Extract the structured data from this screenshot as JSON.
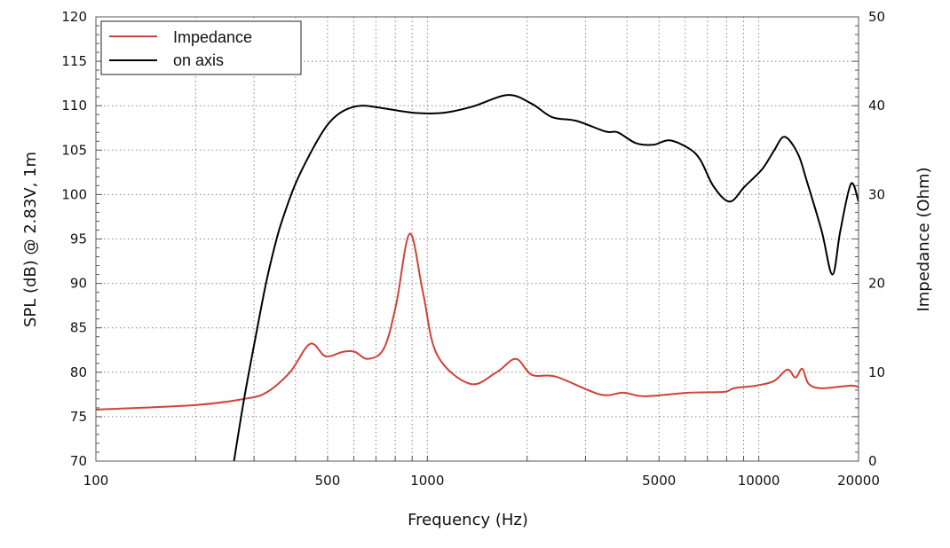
{
  "chart_data": {
    "type": "line",
    "xlabel": "Frequency (Hz)",
    "ylabel": "SPL (dB) @ 2.83V, 1m",
    "y2label": "Impedance (Ohm)",
    "xscale": "log",
    "xlim": [
      100,
      20000
    ],
    "ylim": [
      70,
      120
    ],
    "y2lim": [
      0,
      50
    ],
    "grid": true,
    "legend": "top-left",
    "x_ticks": [
      "100",
      "500",
      "1000",
      "5000",
      "10000",
      "20000"
    ],
    "y_ticks": [
      "70",
      "75",
      "80",
      "85",
      "90",
      "95",
      "100",
      "105",
      "110",
      "115",
      "120"
    ],
    "y2_ticks": [
      "0",
      "10",
      "20",
      "30",
      "40",
      "50"
    ],
    "series": [
      {
        "name": "Impedance",
        "axis": "right",
        "color": "#cf4238",
        "x": [
          100,
          199,
          280,
          326,
          385,
          443,
          493,
          557,
          604,
          662,
          740,
          806,
          885,
          970,
          1069,
          1343,
          1618,
          1849,
          2069,
          2445,
          3320,
          3900,
          4520,
          6150,
          7870,
          8400,
          9820,
          11100,
          12200,
          12900,
          13530,
          14140,
          15480,
          18970,
          20000
        ],
        "y": [
          5.8,
          6.3,
          7.0,
          7.7,
          10.0,
          13.2,
          11.8,
          12.3,
          12.3,
          11.5,
          12.7,
          17.7,
          25.6,
          19.0,
          12.0,
          8.7,
          10.0,
          11.5,
          9.7,
          9.5,
          7.5,
          7.7,
          7.3,
          7.7,
          7.8,
          8.2,
          8.5,
          9.0,
          10.3,
          9.4,
          10.4,
          8.7,
          8.2,
          8.5,
          8.3
        ]
      },
      {
        "name": "on axis",
        "axis": "left",
        "color": "#000000",
        "x": [
          259,
          280,
          307,
          326,
          347,
          364,
          400,
          452,
          501,
          557,
          630,
          740,
          911,
          1117,
          1369,
          1750,
          2069,
          2382,
          2813,
          3445,
          3757,
          4249,
          4806,
          5373,
          6150,
          6663,
          7310,
          8170,
          9066,
          10260,
          11100,
          11960,
          13120,
          13940,
          15480,
          16680,
          17620,
          18970,
          20000
        ],
        "y": [
          69.2,
          77.0,
          85.0,
          90.0,
          94.3,
          97.0,
          101.2,
          105.2,
          107.9,
          109.4,
          110.0,
          109.7,
          109.2,
          109.2,
          109.9,
          111.2,
          110.2,
          108.7,
          108.3,
          107.1,
          107.0,
          105.8,
          105.6,
          106.1,
          105.2,
          103.9,
          100.9,
          99.2,
          100.9,
          102.9,
          104.9,
          106.5,
          104.6,
          101.6,
          95.9,
          91.0,
          95.9,
          101.2,
          99.2
        ]
      }
    ]
  }
}
